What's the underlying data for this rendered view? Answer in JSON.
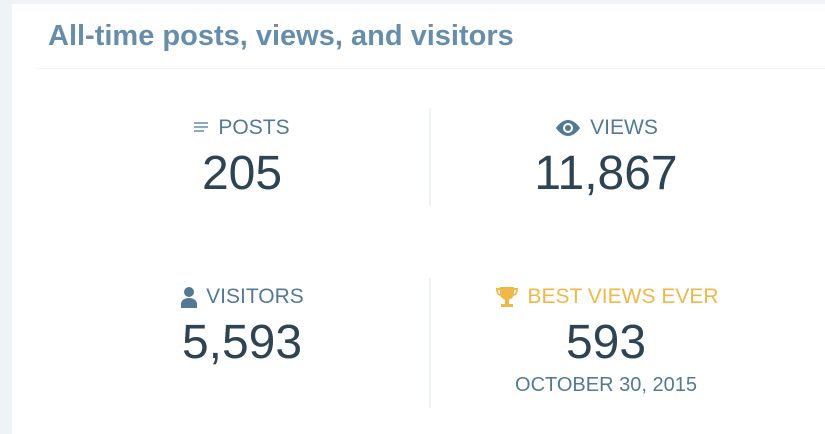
{
  "header": {
    "title": "All-time posts, views, and visitors"
  },
  "stats": [
    {
      "label": "POSTS",
      "value": "205"
    },
    {
      "label": "VIEWS",
      "value": "11,867"
    },
    {
      "label": "VISITORS",
      "value": "5,593"
    },
    {
      "label": "BEST VIEWS EVER",
      "value": "593",
      "date": "OCTOBER 30, 2015"
    }
  ]
}
